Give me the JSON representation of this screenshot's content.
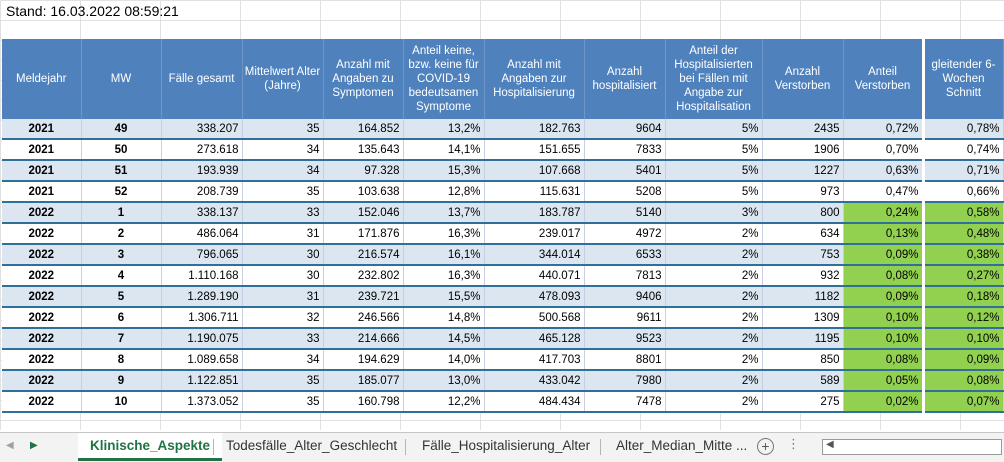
{
  "stand": "Stand: 16.03.2022 08:59:21",
  "headers": [
    "Meldejahr",
    "MW",
    "Fälle gesamt",
    "Mittelwert Alter (Jahre)",
    "Anzahl mit Angaben zu Symptomen",
    "Anteil keine, bzw. keine für COVID-19 bedeutsamen Symptome",
    "Anzahl mit Angaben zur Hospitalisierung",
    "Anzahl hospitalisiert",
    "Anteil der Hospitalisierten bei Fällen mit Angabe zur Hospitalisation",
    "Anzahl Verstorben",
    "Anteil Verstorben",
    "gleitender 6-Wochen Schnitt"
  ],
  "rows": [
    [
      "2021",
      "49",
      "338.207",
      "35",
      "164.852",
      "13,2%",
      "182.763",
      "9604",
      "5%",
      "2435",
      "0,72%",
      "0,78%"
    ],
    [
      "2021",
      "50",
      "273.618",
      "34",
      "135.643",
      "14,1%",
      "151.655",
      "7833",
      "5%",
      "1906",
      "0,70%",
      "0,74%"
    ],
    [
      "2021",
      "51",
      "193.939",
      "34",
      "97.328",
      "15,3%",
      "107.668",
      "5401",
      "5%",
      "1227",
      "0,63%",
      "0,71%"
    ],
    [
      "2021",
      "52",
      "208.739",
      "35",
      "103.638",
      "12,8%",
      "115.631",
      "5208",
      "5%",
      "973",
      "0,47%",
      "0,66%"
    ],
    [
      "2022",
      "1",
      "338.137",
      "33",
      "152.046",
      "13,7%",
      "183.787",
      "5140",
      "3%",
      "800",
      "0,24%",
      "0,58%"
    ],
    [
      "2022",
      "2",
      "486.064",
      "31",
      "171.876",
      "16,3%",
      "239.017",
      "4972",
      "2%",
      "634",
      "0,13%",
      "0,48%"
    ],
    [
      "2022",
      "3",
      "796.065",
      "30",
      "216.574",
      "16,1%",
      "344.014",
      "6533",
      "2%",
      "753",
      "0,09%",
      "0,38%"
    ],
    [
      "2022",
      "4",
      "1.110.168",
      "30",
      "232.802",
      "16,3%",
      "440.071",
      "7813",
      "2%",
      "932",
      "0,08%",
      "0,27%"
    ],
    [
      "2022",
      "5",
      "1.289.190",
      "31",
      "239.721",
      "15,5%",
      "478.093",
      "9406",
      "2%",
      "1182",
      "0,09%",
      "0,18%"
    ],
    [
      "2022",
      "6",
      "1.306.711",
      "32",
      "246.566",
      "14,8%",
      "500.568",
      "9611",
      "2%",
      "1309",
      "0,10%",
      "0,12%"
    ],
    [
      "2022",
      "7",
      "1.190.075",
      "33",
      "214.666",
      "14,5%",
      "465.128",
      "9523",
      "2%",
      "1195",
      "0,10%",
      "0,10%"
    ],
    [
      "2022",
      "8",
      "1.089.658",
      "34",
      "194.629",
      "14,0%",
      "417.703",
      "8801",
      "2%",
      "850",
      "0,08%",
      "0,09%"
    ],
    [
      "2022",
      "9",
      "1.122.851",
      "35",
      "185.077",
      "13,0%",
      "433.042",
      "7980",
      "2%",
      "589",
      "0,05%",
      "0,08%"
    ],
    [
      "2022",
      "10",
      "1.373.052",
      "35",
      "160.798",
      "12,2%",
      "484.434",
      "7478",
      "2%",
      "275",
      "0,02%",
      "0,07%"
    ]
  ],
  "green_from_row": 4,
  "colors": {
    "header": "#4f81bd",
    "band": "#dce6f1",
    "green": "#92d050",
    "excel_green": "#217346"
  },
  "tabs": {
    "active": "Klinische_Aspekte",
    "t2": "Todesfälle_Alter_Geschlecht",
    "t3": "Fälle_Hospitalisierung_Alter",
    "t4": "Alter_Median_Mitte ..."
  }
}
